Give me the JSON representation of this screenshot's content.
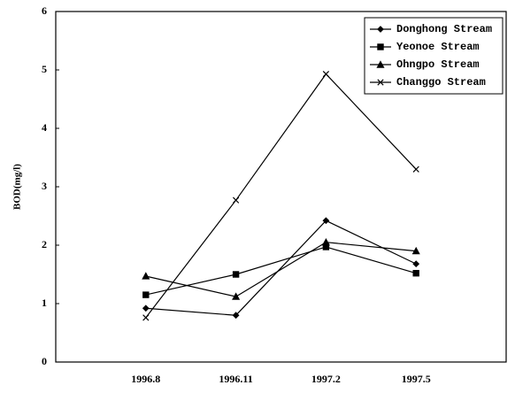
{
  "chart_data": {
    "type": "line",
    "y_label": "BOD(mg/l)",
    "categories": [
      "1996.8",
      "1996.11",
      "1997.2",
      "1997.5"
    ],
    "series": [
      {
        "name": "Donghong Stream",
        "color": "#000000",
        "marker": "diamond",
        "values": [
          0.92,
          0.8,
          2.42,
          1.68
        ]
      },
      {
        "name": "Yeonoe Stream",
        "color": "#000000",
        "marker": "square",
        "values": [
          1.15,
          1.5,
          1.97,
          1.52
        ]
      },
      {
        "name": "Ohngpo Stream",
        "color": "#000000",
        "marker": "triangle",
        "values": [
          1.47,
          1.12,
          2.05,
          1.9
        ]
      },
      {
        "name": "Changgo Stream",
        "color": "#000000",
        "marker": "x",
        "values": [
          0.76,
          2.77,
          4.93,
          3.3
        ]
      }
    ],
    "ylim": [
      0,
      6
    ],
    "yticks": [
      0,
      1,
      2,
      3,
      4,
      5,
      6
    ],
    "legend": "upper right"
  }
}
